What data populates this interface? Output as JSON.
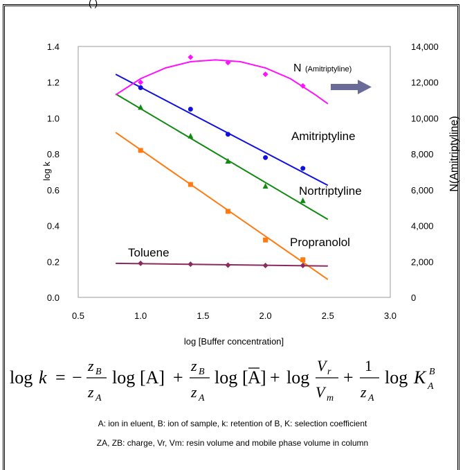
{
  "top_fragment": "(                            )",
  "chart_data": {
    "type": "scatter",
    "xlabel": "log [Buffer concentration]",
    "ylabel": "log k",
    "y2label": "N(Amitriptyline)",
    "xlim": [
      0.5,
      3.0
    ],
    "ylim": [
      0.0,
      1.4
    ],
    "y2lim": [
      0,
      14000
    ],
    "x_ticks": [
      "0.5",
      "1.0",
      "1.5",
      "2.0",
      "2.5",
      "3.0"
    ],
    "y_ticks": [
      "0.0",
      "0.2",
      "0.4",
      "0.6",
      "0.8",
      "1.0",
      "1.2",
      "1.4"
    ],
    "y2_ticks": [
      "0",
      "2,000",
      "4,000",
      "6,000",
      "8,000",
      "10,000",
      "12,000",
      "14,000"
    ],
    "series": [
      {
        "name": "Amitriptyline",
        "color": "#1010e0",
        "marker": "circle",
        "x": [
          1.0,
          1.4,
          1.7,
          2.0,
          2.3
        ],
        "y": [
          1.17,
          1.05,
          0.91,
          0.78,
          0.72
        ],
        "fit": [
          [
            0.8,
            1.245
          ],
          [
            2.5,
            0.625
          ]
        ]
      },
      {
        "name": "Nortriptyline",
        "color": "#108a10",
        "marker": "triangle",
        "x": [
          1.0,
          1.4,
          1.7,
          2.0,
          2.3
        ],
        "y": [
          1.06,
          0.9,
          0.76,
          0.62,
          0.54
        ],
        "fit": [
          [
            0.8,
            1.135
          ],
          [
            2.5,
            0.435
          ]
        ]
      },
      {
        "name": "Propranolol",
        "color": "#ff7a10",
        "marker": "square",
        "x": [
          1.0,
          1.4,
          1.7,
          2.0,
          2.3
        ],
        "y": [
          0.82,
          0.63,
          0.48,
          0.32,
          0.21
        ],
        "fit": [
          [
            0.8,
            0.92
          ],
          [
            2.5,
            0.1
          ]
        ]
      },
      {
        "name": "Toluene",
        "color": "#8a2a5e",
        "marker": "diamond",
        "x": [
          1.0,
          1.4,
          1.7,
          2.0,
          2.3
        ],
        "y": [
          0.19,
          0.185,
          0.18,
          0.178,
          0.178
        ],
        "fit": [
          [
            0.8,
            0.19
          ],
          [
            2.5,
            0.175
          ]
        ]
      },
      {
        "name": "N (Amitriptyline)",
        "axis": "right",
        "color": "#ff10ff",
        "marker": "diamond",
        "x": [
          1.0,
          1.4,
          1.7,
          2.0,
          2.3
        ],
        "y": [
          12000,
          13400,
          13100,
          12450,
          11800
        ],
        "curve": [
          [
            0.8,
            11300
          ],
          [
            1.0,
            12200
          ],
          [
            1.2,
            12800
          ],
          [
            1.4,
            13150
          ],
          [
            1.6,
            13250
          ],
          [
            1.8,
            13150
          ],
          [
            2.0,
            12800
          ],
          [
            2.2,
            12200
          ],
          [
            2.4,
            11300
          ],
          [
            2.5,
            10800
          ]
        ]
      }
    ],
    "annotations": {
      "n_label": "N",
      "n_sub": "(Amitriptyline)",
      "amitriptyline": "Amitriptyline",
      "nortriptyline": "Nortriptyline",
      "propranolol": "Propranolol",
      "toluene": "Toluene"
    }
  },
  "formula": {
    "log": "log",
    "k": "k",
    "eq": "=",
    "minus": "−",
    "plus": "+",
    "zB": "z",
    "B": "B",
    "zA": "z",
    "A": "A",
    "bracket_A": "[A]",
    "bracket_Abar": "A",
    "Vr": "V",
    "r": "r",
    "Vm": "V",
    "m": "m",
    "one": "1",
    "K": "K",
    "KB": "B",
    "KA": "A"
  },
  "notes": {
    "line1": "A: ion in eluent,  B: ion of sample,  k: retention of B,  K: selection coefficient",
    "line2": "ZA, ZB: charge,  Vr,  Vm: resin volume and mobile phase volume in column"
  }
}
